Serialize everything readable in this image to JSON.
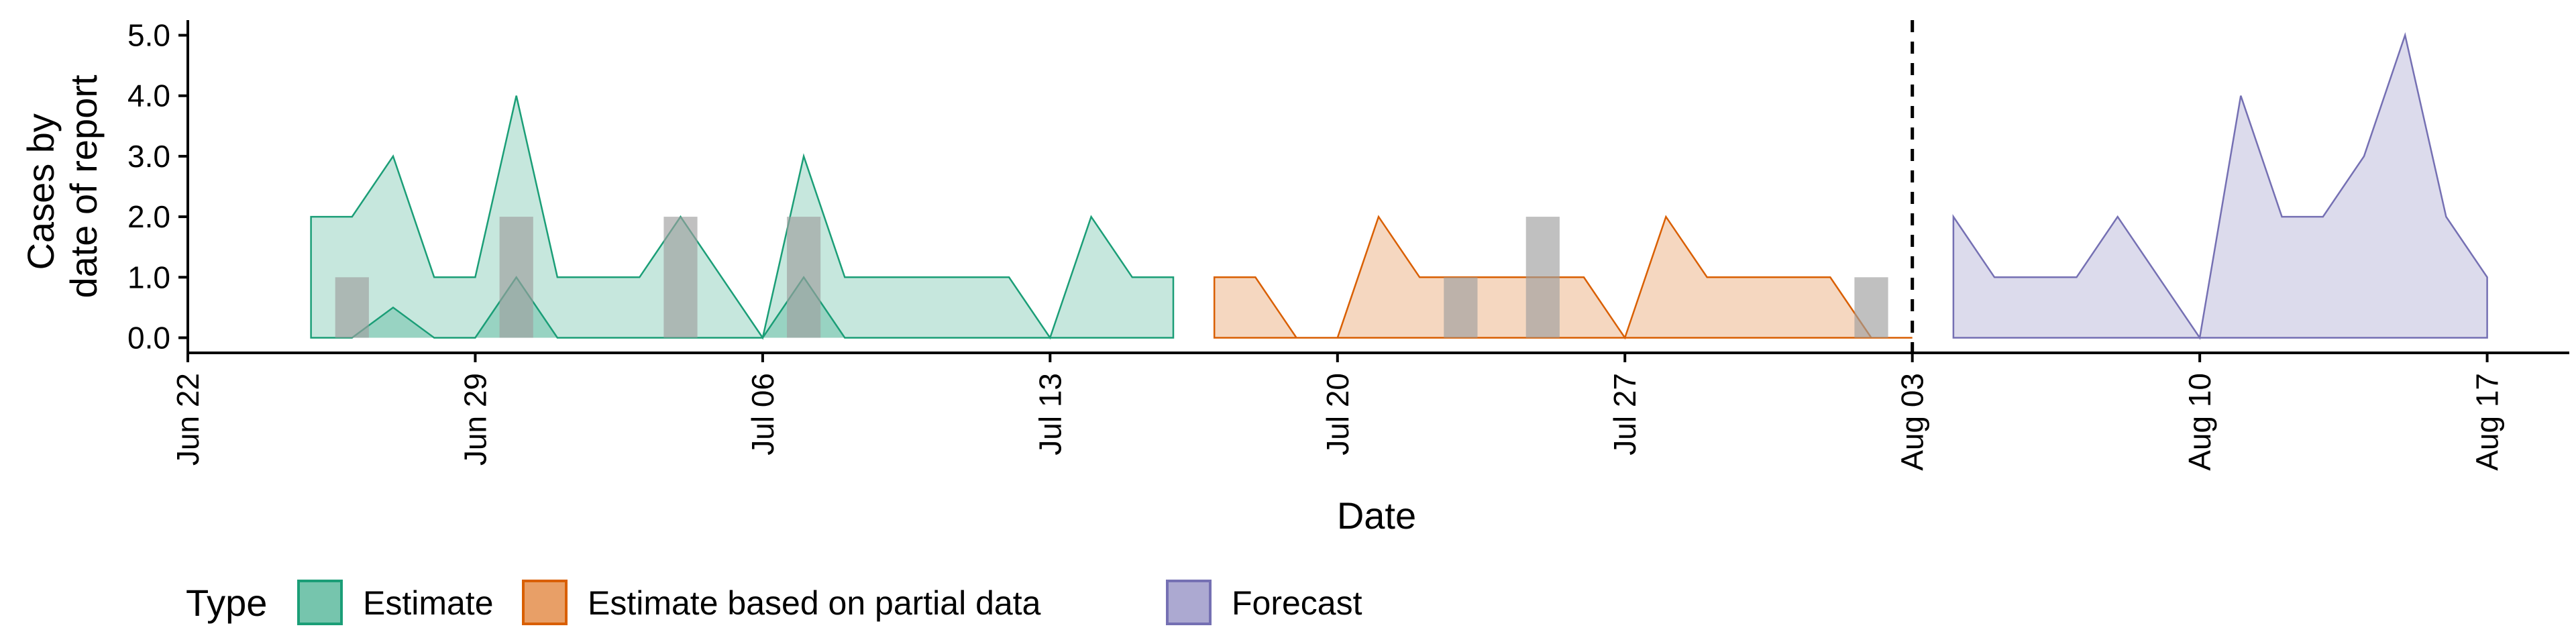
{
  "chart_data": {
    "type": "area",
    "xlabel": "Date",
    "ylabel_lines": [
      "Cases by",
      "date of report"
    ],
    "x_ticks": [
      "Jun 22",
      "Jun 29",
      "Jul 06",
      "Jul 13",
      "Jul 20",
      "Jul 27",
      "Aug 03",
      "Aug 10",
      "Aug 17"
    ],
    "x_tick_dates": [
      "2020-06-22",
      "2020-06-29",
      "2020-07-06",
      "2020-07-13",
      "2020-07-20",
      "2020-07-27",
      "2020-08-03",
      "2020-08-10",
      "2020-08-17"
    ],
    "x_range": [
      "2020-06-22",
      "2020-08-19"
    ],
    "y_ticks": [
      "0.0",
      "1.0",
      "2.0",
      "3.0",
      "4.0",
      "5.0"
    ],
    "ylim": [
      -0.25,
      5.25
    ],
    "forecast_date": "2020-08-03",
    "legend": {
      "title": "Type",
      "placement": "bottom",
      "entries": [
        "Estimate",
        "Estimate based on partial data",
        "Forecast"
      ]
    },
    "series": [
      {
        "name": "Estimate",
        "color": "#1B9E77",
        "points": [
          [
            "2020-06-25",
            0,
            2
          ],
          [
            "2020-06-26",
            0,
            2
          ],
          [
            "2020-06-27",
            0.5,
            3
          ],
          [
            "2020-06-28",
            0,
            1
          ],
          [
            "2020-06-29",
            0,
            1
          ],
          [
            "2020-06-30",
            1,
            4
          ],
          [
            "2020-07-01",
            0,
            1
          ],
          [
            "2020-07-02",
            0,
            1
          ],
          [
            "2020-07-03",
            0,
            1
          ],
          [
            "2020-07-04",
            0,
            2
          ],
          [
            "2020-07-05",
            0,
            1
          ],
          [
            "2020-07-06",
            0,
            0
          ],
          [
            "2020-07-07",
            1,
            3
          ],
          [
            "2020-07-08",
            0,
            1
          ],
          [
            "2020-07-09",
            0,
            1
          ],
          [
            "2020-07-10",
            0,
            1
          ],
          [
            "2020-07-11",
            0,
            1
          ],
          [
            "2020-07-12",
            0,
            1
          ],
          [
            "2020-07-13",
            0,
            0
          ],
          [
            "2020-07-14",
            0,
            2
          ],
          [
            "2020-07-15",
            0,
            1
          ],
          [
            "2020-07-16",
            0,
            1
          ]
        ]
      },
      {
        "name": "Estimate based on partial data",
        "color": "#D95F02",
        "points": [
          [
            "2020-07-17",
            0,
            1
          ],
          [
            "2020-07-18",
            0,
            1
          ],
          [
            "2020-07-19",
            0,
            0
          ],
          [
            "2020-07-20",
            0,
            0
          ],
          [
            "2020-07-21",
            0,
            2
          ],
          [
            "2020-07-22",
            0,
            1
          ],
          [
            "2020-07-23",
            0,
            1
          ],
          [
            "2020-07-24",
            0,
            1
          ],
          [
            "2020-07-25",
            0,
            1
          ],
          [
            "2020-07-26",
            0,
            1
          ],
          [
            "2020-07-27",
            0,
            0
          ],
          [
            "2020-07-28",
            0,
            2
          ],
          [
            "2020-07-29",
            0,
            1
          ],
          [
            "2020-07-30",
            0,
            1
          ],
          [
            "2020-07-31",
            0,
            1
          ],
          [
            "2020-08-01",
            0,
            1
          ],
          [
            "2020-08-02",
            0,
            0
          ],
          [
            "2020-08-03",
            0,
            0
          ]
        ]
      },
      {
        "name": "Forecast",
        "color": "#7570B3",
        "points": [
          [
            "2020-08-04",
            0,
            2
          ],
          [
            "2020-08-05",
            0,
            1
          ],
          [
            "2020-08-06",
            0,
            1
          ],
          [
            "2020-08-07",
            0,
            1
          ],
          [
            "2020-08-08",
            0,
            2
          ],
          [
            "2020-08-09",
            0,
            1
          ],
          [
            "2020-08-10",
            0,
            0
          ],
          [
            "2020-08-11",
            0,
            4
          ],
          [
            "2020-08-12",
            0,
            2
          ],
          [
            "2020-08-13",
            0,
            2
          ],
          [
            "2020-08-14",
            0,
            3
          ],
          [
            "2020-08-15",
            0,
            5
          ],
          [
            "2020-08-16",
            0,
            2
          ],
          [
            "2020-08-17",
            0,
            1
          ]
        ]
      }
    ],
    "observed_bars": {
      "color": "#9E9E9E",
      "values": [
        [
          "2020-06-26",
          1
        ],
        [
          "2020-06-30",
          2
        ],
        [
          "2020-07-04",
          2
        ],
        [
          "2020-07-07",
          2
        ],
        [
          "2020-07-23",
          1
        ],
        [
          "2020-07-25",
          2
        ],
        [
          "2020-08-02",
          1
        ]
      ]
    }
  }
}
